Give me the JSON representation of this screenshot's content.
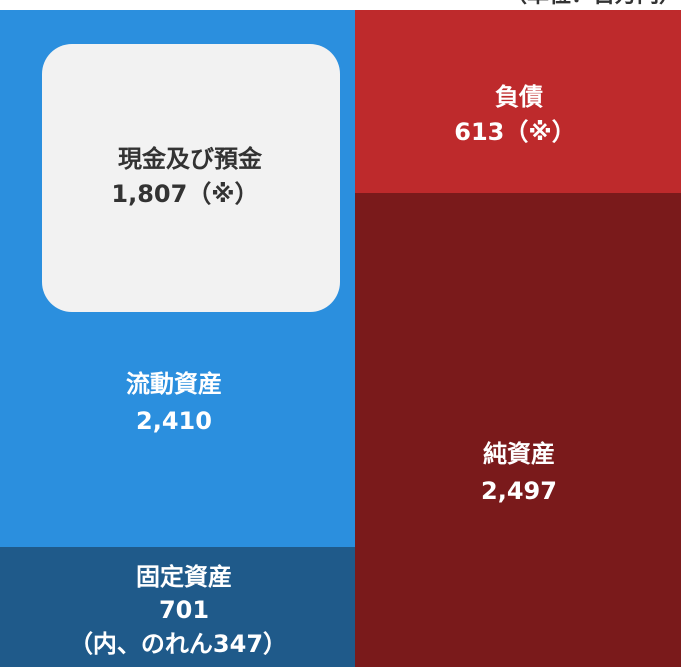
{
  "unit_label": "（単位：百万円）",
  "assets": {
    "cash": {
      "label": "現金及び預金",
      "value": "1,807（※）"
    },
    "current": {
      "label": "流動資産",
      "value": "2,410"
    },
    "fixed": {
      "label": "固定資産",
      "value": "701",
      "note": "（内、のれん347）"
    }
  },
  "liabilities": {
    "label": "負債",
    "value": "613（※）"
  },
  "net_assets": {
    "label": "純資産",
    "value": "2,497"
  }
}
